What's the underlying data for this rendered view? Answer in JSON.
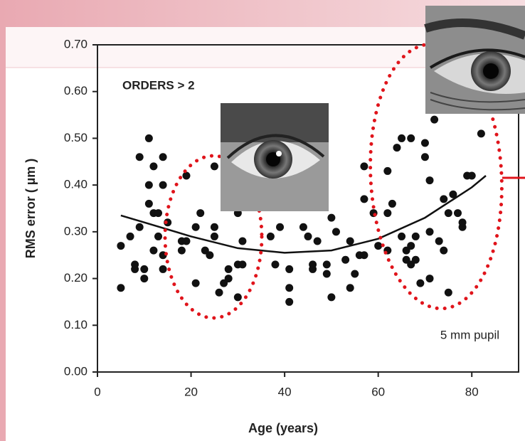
{
  "chart_data": {
    "type": "scatter",
    "annotations": [
      "ORDERS > 2",
      "5 mm pupil"
    ],
    "x_label": "Age (years)",
    "y_label": "RMS error ( µm )",
    "xlim": [
      0,
      90
    ],
    "ylim": [
      0,
      0.7
    ],
    "xticks": [
      0,
      20,
      40,
      60,
      80
    ],
    "yticks": [
      {
        "value": 0,
        "label": "0.00"
      },
      {
        "value": 0.1,
        "label": "0.10"
      },
      {
        "value": 0.2,
        "label": "0.20"
      },
      {
        "value": 0.3,
        "label": "0.30"
      },
      {
        "value": 0.4,
        "label": "0.40"
      },
      {
        "value": 0.5,
        "label": "0.50"
      },
      {
        "value": 0.6,
        "label": "0.60"
      },
      {
        "value": 0.7,
        "label": "0.70"
      }
    ],
    "color": "#111111",
    "x": [
      5,
      5,
      7,
      8,
      8,
      9,
      9,
      10,
      10,
      11,
      11,
      11,
      12,
      12,
      12,
      13,
      13,
      14,
      14,
      14,
      14,
      15,
      18,
      18,
      19,
      19,
      21,
      21,
      22,
      23,
      24,
      25,
      25,
      25,
      26,
      27,
      28,
      28,
      30,
      30,
      31,
      31,
      30,
      37,
      38,
      39,
      41,
      41,
      41,
      44,
      45,
      46,
      46,
      47,
      49,
      49,
      50,
      50,
      51,
      53,
      54,
      54,
      55,
      56,
      57,
      57,
      57,
      59,
      60,
      62,
      62,
      62,
      63,
      64,
      65,
      65,
      66,
      66,
      67,
      67,
      67,
      68,
      68,
      69,
      70,
      70,
      71,
      71,
      71,
      72,
      73,
      74,
      74,
      75,
      75,
      76,
      77,
      78,
      78,
      79,
      80,
      82
    ],
    "values": [
      0.18,
      0.27,
      0.29,
      0.23,
      0.22,
      0.46,
      0.31,
      0.22,
      0.2,
      0.5,
      0.4,
      0.36,
      0.44,
      0.34,
      0.26,
      0.29,
      0.34,
      0.46,
      0.4,
      0.25,
      0.22,
      0.32,
      0.28,
      0.26,
      0.42,
      0.28,
      0.19,
      0.31,
      0.34,
      0.26,
      0.25,
      0.44,
      0.29,
      0.31,
      0.17,
      0.19,
      0.22,
      0.2,
      0.23,
      0.16,
      0.28,
      0.23,
      0.34,
      0.29,
      0.23,
      0.31,
      0.15,
      0.18,
      0.22,
      0.31,
      0.29,
      0.23,
      0.22,
      0.28,
      0.23,
      0.21,
      0.33,
      0.16,
      0.3,
      0.24,
      0.28,
      0.18,
      0.21,
      0.25,
      0.44,
      0.37,
      0.25,
      0.34,
      0.27,
      0.43,
      0.26,
      0.34,
      0.36,
      0.48,
      0.5,
      0.29,
      0.26,
      0.24,
      0.23,
      0.27,
      0.5,
      0.29,
      0.24,
      0.19,
      0.49,
      0.46,
      0.3,
      0.2,
      0.41,
      0.54,
      0.28,
      0.37,
      0.26,
      0.17,
      0.34,
      0.38,
      0.34,
      0.31,
      0.32,
      0.42,
      0.42,
      0.51
    ],
    "fit": {
      "color": "#111111",
      "x": [
        5,
        10,
        20,
        30,
        40,
        50,
        60,
        70,
        80,
        83
      ],
      "values": [
        0.335,
        0.32,
        0.29,
        0.265,
        0.255,
        0.26,
        0.285,
        0.33,
        0.395,
        0.42
      ]
    }
  }
}
